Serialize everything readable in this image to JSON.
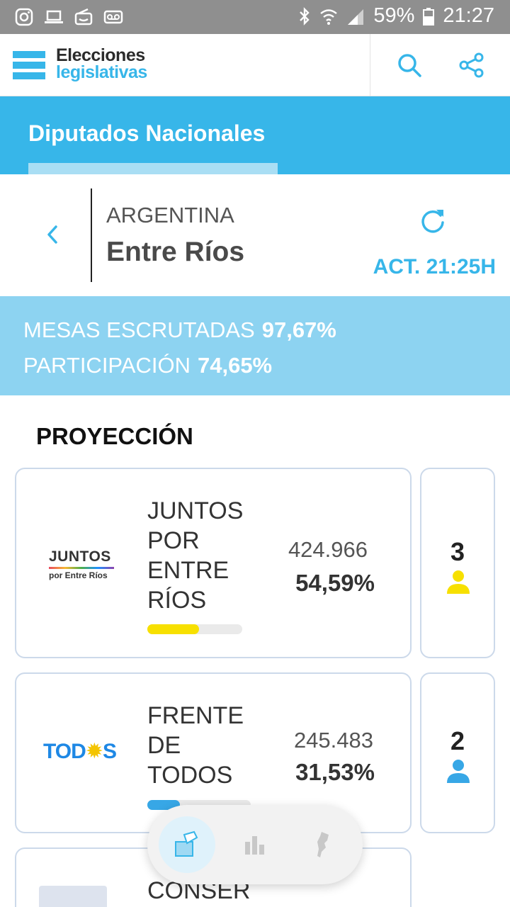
{
  "status_bar": {
    "battery": "59%",
    "time": "21:27",
    "left_icons": [
      "instagram-icon",
      "laptop-icon",
      "radio-icon",
      "voicemail-icon"
    ],
    "right_icons": [
      "bluetooth-icon",
      "wifi-icon",
      "signal-icon",
      "battery-icon"
    ]
  },
  "header": {
    "logo_line1": "Elecciones",
    "logo_line2": "legislativas",
    "icons": [
      "search-icon",
      "share-icon"
    ]
  },
  "tab": {
    "label": "Diputados Nacionales"
  },
  "location": {
    "country": "ARGENTINA",
    "province": "Entre Ríos",
    "update_label": "ACT. 21:25H"
  },
  "stats": {
    "mesas_label": "MESAS ESCRUTADAS",
    "mesas_value": "97,67%",
    "participacion_label": "PARTICIPACIÓN",
    "participacion_value": "74,65%"
  },
  "section": {
    "title": "PROYECCIÓN"
  },
  "parties": [
    {
      "name_lines": [
        "JUNTOS",
        "POR",
        "ENTRE",
        "RÍOS"
      ],
      "logo_line1": "JUNTOS",
      "logo_line2": "por Entre Ríos",
      "votes": "424.966",
      "percent": "54,59%",
      "percent_value": 54.59,
      "seats": "3",
      "color": "#f7e000"
    },
    {
      "name_lines": [
        "FRENTE",
        "DE",
        "TODOS"
      ],
      "logo_text_a": "TOD",
      "logo_text_sun": "✹",
      "logo_text_b": "S",
      "votes": "245.483",
      "percent": "31,53%",
      "percent_value": 31.53,
      "seats": "2",
      "color": "#37a7e6"
    },
    {
      "name_lines": [
        "CONSER"
      ],
      "votes": "",
      "percent": ""
    }
  ],
  "colors": {
    "brand_blue": "#37b6e9",
    "light_blue": "#8dd3f1",
    "card_border": "#ccd9ea"
  }
}
